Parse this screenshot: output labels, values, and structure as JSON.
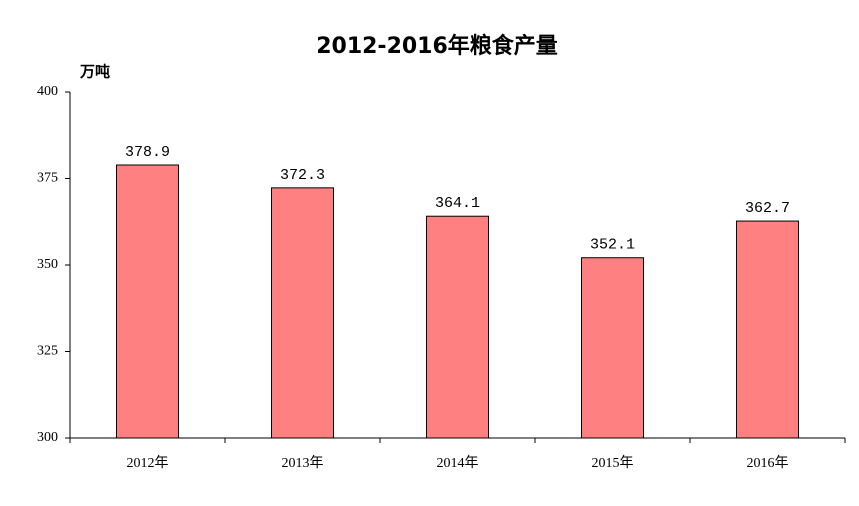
{
  "chart_data": {
    "type": "bar",
    "title": "2012-2016年粮食产量",
    "y_label": "万吨",
    "categories": [
      "2012年",
      "2013年",
      "2014年",
      "2015年",
      "2016年"
    ],
    "values": [
      378.9,
      372.3,
      364.1,
      352.1,
      362.7
    ],
    "color": "#ff8080",
    "ylim": [
      300,
      400
    ],
    "yticks": [
      300,
      325,
      350,
      375,
      400
    ]
  }
}
